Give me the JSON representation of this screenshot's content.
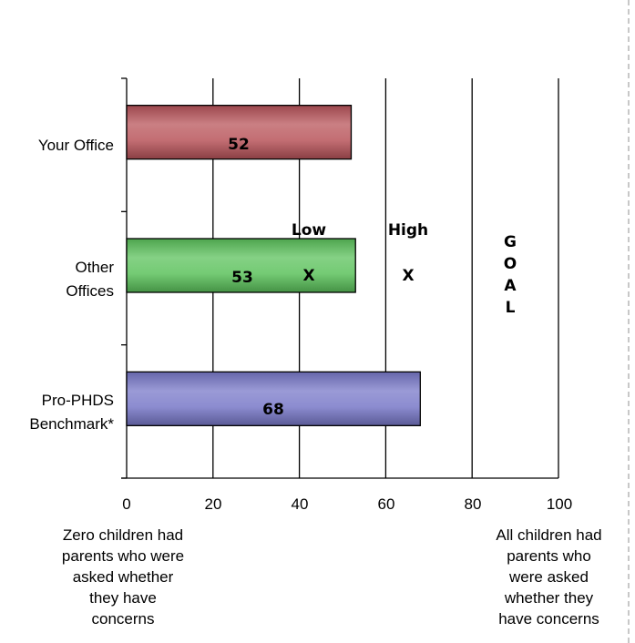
{
  "chart_data": {
    "type": "bar",
    "orientation": "horizontal",
    "categories": [
      "Your Office",
      "Other\nOffices",
      "Pro-PHDS\nBenchmark*"
    ],
    "values": [
      52,
      53,
      68
    ],
    "bar_labels": [
      "52",
      "53",
      "68"
    ],
    "colors": [
      "#b8545a",
      "#5cc25c",
      "#7878c8"
    ],
    "xlim": [
      0,
      100
    ],
    "xticks": [
      0,
      20,
      40,
      60,
      80,
      100
    ],
    "xtick_labels": [
      "0",
      "20",
      "40",
      "60",
      "80",
      "100"
    ],
    "grid": true,
    "title": "",
    "xlabel": "",
    "ylabel": "",
    "annotations": {
      "low": {
        "label": "Low",
        "marker": "X",
        "x": 42
      },
      "high": {
        "label": "High",
        "marker": "X",
        "x": 65
      },
      "goal": {
        "letters": [
          "G",
          "O",
          "A",
          "L"
        ],
        "x": 89
      }
    },
    "axis_notes": {
      "min": "Zero children had\nparents who were\nasked whether\nthey have\nconcerns",
      "max": "All children had\nparents who\nwere asked\nwhether they\nhave concerns"
    }
  }
}
